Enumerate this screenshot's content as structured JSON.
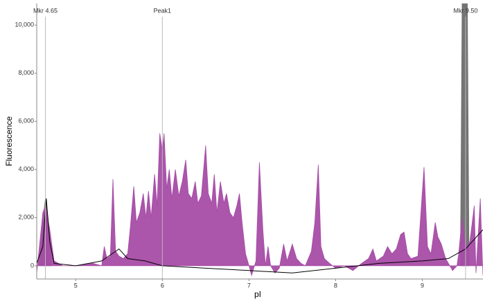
{
  "chart_data": {
    "type": "line",
    "xlabel": "pI",
    "ylabel": "Fluorescence",
    "xlim": [
      4.55,
      9.7
    ],
    "ylim": [
      -550,
      10900
    ],
    "xticks": [
      5,
      6,
      7,
      8,
      9
    ],
    "yticks": [
      0,
      {
        "value": 2000,
        "label": "2,000"
      },
      {
        "value": 4000,
        "label": "4,000"
      },
      {
        "value": 6000,
        "label": "6,000"
      },
      {
        "value": 8000,
        "label": "8,000"
      },
      {
        "value": 10000,
        "label": "10,000"
      }
    ],
    "markers": [
      {
        "label": "Mkr 4.65",
        "x": 4.65
      },
      {
        "label": "Peak1",
        "x": 6.0
      },
      {
        "label": "Mkr 9.50",
        "x": 9.5
      }
    ],
    "series": [
      {
        "fill": true,
        "color": "#6e6e6e",
        "x": [
          4.58,
          4.62,
          4.65,
          4.68,
          4.72,
          9.44,
          9.44,
          9.46,
          9.52,
          9.54
        ],
        "values": [
          0,
          1800,
          2800,
          2000,
          0,
          null,
          0,
          11000,
          11000,
          0
        ]
      },
      {
        "fill": true,
        "color": "#a64ca6",
        "x": [
          4.55,
          4.62,
          4.65,
          4.7,
          4.75,
          4.85,
          5.0,
          5.2,
          5.3,
          5.33,
          5.36,
          5.4,
          5.43,
          5.46,
          5.5,
          5.55,
          5.6,
          5.63,
          5.67,
          5.7,
          5.74,
          5.78,
          5.81,
          5.84,
          5.87,
          5.91,
          5.94,
          5.97,
          6.0,
          6.02,
          6.05,
          6.08,
          6.11,
          6.15,
          6.19,
          6.23,
          6.27,
          6.3,
          6.34,
          6.38,
          6.41,
          6.45,
          6.5,
          6.53,
          6.57,
          6.6,
          6.63,
          6.67,
          6.71,
          6.74,
          6.78,
          6.82,
          6.86,
          6.89,
          6.92,
          6.96,
          7.0,
          7.03,
          7.08,
          7.12,
          7.16,
          7.19,
          7.22,
          7.25,
          7.3,
          7.35,
          7.4,
          7.44,
          7.5,
          7.55,
          7.6,
          7.65,
          7.72,
          7.76,
          7.8,
          7.83,
          7.87,
          7.93,
          8.0,
          8.1,
          8.2,
          8.3,
          8.38,
          8.43,
          8.47,
          8.55,
          8.6,
          8.65,
          8.7,
          8.75,
          8.79,
          8.83,
          8.87,
          8.95,
          9.02,
          9.06,
          9.1,
          9.15,
          9.18,
          9.22,
          9.27,
          9.35,
          9.4,
          9.42,
          9.46,
          9.5,
          9.55,
          9.6,
          9.62,
          9.67,
          9.7
        ],
        "values": [
          -300,
          2200,
          2500,
          1500,
          200,
          0,
          0,
          100,
          0,
          800,
          300,
          400,
          3600,
          600,
          400,
          300,
          500,
          1600,
          3300,
          1800,
          2200,
          3000,
          2000,
          3100,
          2000,
          3800,
          2500,
          5500,
          4800,
          5500,
          3200,
          4000,
          2800,
          4000,
          2900,
          3500,
          4400,
          3000,
          2800,
          3500,
          2600,
          2900,
          5000,
          3000,
          2600,
          3800,
          2200,
          3500,
          2600,
          3000,
          2200,
          2000,
          2500,
          3000,
          1800,
          500,
          0,
          -400,
          200,
          4300,
          1500,
          0,
          800,
          0,
          -300,
          -100,
          900,
          200,
          900,
          300,
          100,
          0,
          600,
          1800,
          4200,
          800,
          300,
          100,
          -100,
          0,
          -200,
          100,
          300,
          700,
          200,
          400,
          800,
          500,
          700,
          1300,
          1400,
          500,
          300,
          400,
          4100,
          800,
          500,
          1800,
          1200,
          900,
          300,
          -200,
          0,
          500,
          2000,
          800,
          1000,
          2500,
          -300,
          2800,
          -400
        ]
      },
      {
        "fill": false,
        "color": "#000000",
        "x": [
          4.55,
          4.62,
          4.66,
          4.7,
          4.75,
          5.0,
          5.3,
          5.5,
          5.6,
          5.8,
          6.0,
          6.5,
          7.0,
          7.5,
          8.0,
          8.5,
          9.0,
          9.3,
          9.5,
          9.7
        ],
        "values": [
          100,
          800,
          2800,
          1000,
          100,
          0,
          200,
          700,
          300,
          200,
          0,
          -100,
          -200,
          -300,
          -100,
          100,
          200,
          300,
          700,
          1500
        ]
      }
    ]
  }
}
